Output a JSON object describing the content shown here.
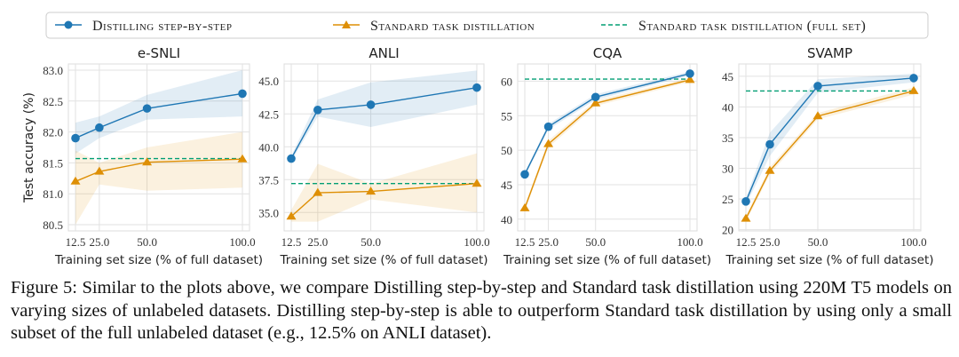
{
  "legend": {
    "position": "top",
    "entries": [
      "Distilling step-by-step",
      "Standard task distillation",
      "Standard task distillation (full set)"
    ]
  },
  "colors": {
    "dss": "#1f77b4",
    "std": "#de8f05",
    "full": "#029e73"
  },
  "caption": "Figure 5: Similar to the plots above, we compare Distilling step-by-step and Standard task distillation using 220M T5 models on varying sizes of unlabeled datasets. Distilling step-by-step is able to outperform Standard task distillation by using only a small subset of the full unlabeled dataset (e.g., 12.5% on ANLI dataset).",
  "chart_data": [
    {
      "type": "line",
      "title": "e-SNLI",
      "xlabel": "Training set size (% of full dataset)",
      "ylabel": "Test accuracy (%)",
      "x": [
        12.5,
        25.0,
        50.0,
        100.0
      ],
      "xticks": [
        "12.5",
        "25.0",
        "50.0",
        "100.0"
      ],
      "yticks": [
        "80.5",
        "81.0",
        "81.5",
        "82.0",
        "82.5",
        "83.0"
      ],
      "ylim": [
        80.4,
        83.1
      ],
      "grid": true,
      "series": [
        {
          "name": "Distilling step-by-step",
          "values": [
            81.9,
            82.07,
            82.38,
            82.62
          ],
          "lower": [
            81.65,
            81.9,
            82.2,
            82.25
          ],
          "upper": [
            82.15,
            82.25,
            82.6,
            83.0
          ]
        },
        {
          "name": "Standard task distillation",
          "values": [
            81.2,
            81.36,
            81.51,
            81.56
          ],
          "lower": [
            80.5,
            81.15,
            81.05,
            81.1
          ],
          "upper": [
            81.7,
            81.5,
            81.75,
            82.0
          ]
        }
      ],
      "full_set": 81.57
    },
    {
      "type": "line",
      "title": "ANLI",
      "xlabel": "Training set size (% of full dataset)",
      "ylabel": "",
      "x": [
        12.5,
        25.0,
        50.0,
        100.0
      ],
      "xticks": [
        "12.5",
        "25.0",
        "50.0",
        "100.0"
      ],
      "yticks": [
        "35.0",
        "37.5",
        "40.0",
        "42.5",
        "45.0"
      ],
      "ylim": [
        33.6,
        46.3
      ],
      "grid": true,
      "series": [
        {
          "name": "Distilling step-by-step",
          "values": [
            39.1,
            42.8,
            43.2,
            44.5
          ],
          "lower": [
            38.9,
            42.3,
            41.5,
            43.2
          ],
          "upper": [
            39.3,
            43.6,
            44.9,
            45.8
          ]
        },
        {
          "name": "Standard task distillation",
          "values": [
            34.7,
            36.5,
            36.6,
            37.2
          ],
          "lower": [
            34.3,
            34.3,
            36.0,
            35.0
          ],
          "upper": [
            35.2,
            38.7,
            37.2,
            39.5
          ]
        }
      ],
      "full_set": 37.2
    },
    {
      "type": "line",
      "title": "CQA",
      "xlabel": "Training set size (% of full dataset)",
      "ylabel": "",
      "x": [
        12.5,
        25.0,
        50.0,
        100.0
      ],
      "xticks": [
        "12.5",
        "25.0",
        "50.0",
        "100.0"
      ],
      "yticks": [
        "40",
        "45",
        "50",
        "55",
        "60"
      ],
      "ylim": [
        38.3,
        62.5
      ],
      "grid": true,
      "series": [
        {
          "name": "Distilling step-by-step",
          "values": [
            46.5,
            53.4,
            57.7,
            61.1
          ],
          "lower": [
            46.2,
            53.0,
            57.3,
            60.8
          ],
          "upper": [
            46.8,
            53.8,
            58.1,
            61.4
          ]
        },
        {
          "name": "Standard task distillation",
          "values": [
            41.6,
            50.9,
            56.8,
            60.2
          ],
          "lower": [
            41.2,
            50.4,
            56.4,
            59.9
          ],
          "upper": [
            42.0,
            51.4,
            57.2,
            60.5
          ]
        }
      ],
      "full_set": 60.3
    },
    {
      "type": "line",
      "title": "SVAMP",
      "xlabel": "Training set size (% of full dataset)",
      "ylabel": "",
      "x": [
        12.5,
        25.0,
        50.0,
        100.0
      ],
      "xticks": [
        "12.5",
        "25.0",
        "50.0",
        "100.0"
      ],
      "yticks": [
        "20",
        "25",
        "30",
        "35",
        "40",
        "45"
      ],
      "ylim": [
        19.8,
        47
      ],
      "grid": true,
      "series": [
        {
          "name": "Distilling step-by-step",
          "values": [
            24.6,
            33.9,
            43.4,
            44.7
          ],
          "lower": [
            24.0,
            32.0,
            42.3,
            44.0
          ],
          "upper": [
            25.2,
            35.8,
            44.5,
            45.4
          ]
        },
        {
          "name": "Standard task distillation",
          "values": [
            21.8,
            29.6,
            38.5,
            42.6
          ],
          "lower": [
            21.3,
            29.0,
            38.0,
            42.0
          ],
          "upper": [
            22.3,
            30.2,
            39.0,
            43.2
          ]
        }
      ],
      "full_set": 42.6
    }
  ]
}
